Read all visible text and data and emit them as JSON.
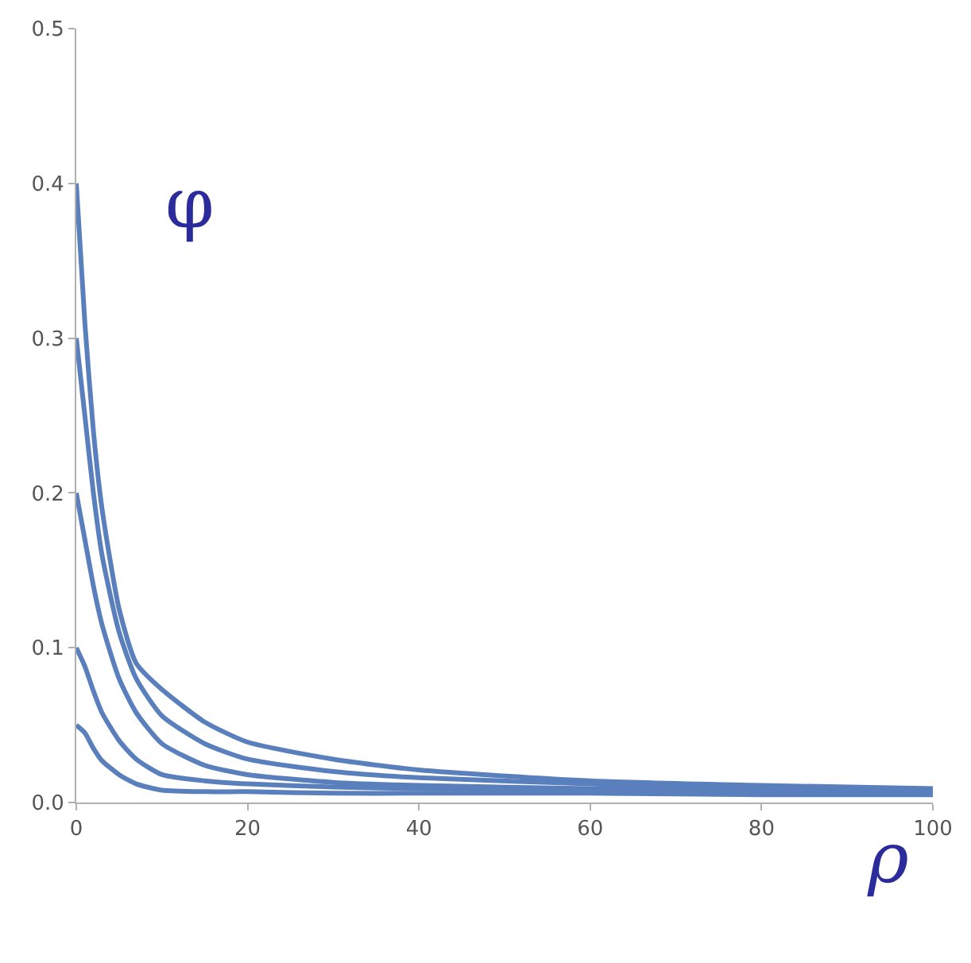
{
  "chart_data": {
    "type": "line",
    "xlabel": "ρ",
    "ylabel": "φ",
    "x": [
      0,
      1,
      2,
      3,
      5,
      7,
      10,
      15,
      20,
      30,
      40,
      60,
      80,
      100
    ],
    "series": [
      {
        "color": "#5a7fbd",
        "values": [
          0.4,
          0.31,
          0.24,
          0.19,
          0.125,
          0.09,
          0.073,
          0.052,
          0.039,
          0.028,
          0.021,
          0.014,
          0.011,
          0.009
        ]
      },
      {
        "color": "#5a7fbd",
        "values": [
          0.3,
          0.25,
          0.2,
          0.16,
          0.11,
          0.08,
          0.056,
          0.038,
          0.028,
          0.02,
          0.016,
          0.012,
          0.009,
          0.008
        ]
      },
      {
        "color": "#5a7fbd",
        "values": [
          0.2,
          0.17,
          0.14,
          0.115,
          0.08,
          0.058,
          0.038,
          0.024,
          0.018,
          0.013,
          0.011,
          0.009,
          0.008,
          0.007
        ]
      },
      {
        "color": "#5a7fbd",
        "values": [
          0.1,
          0.088,
          0.072,
          0.058,
          0.04,
          0.028,
          0.018,
          0.014,
          0.012,
          0.01,
          0.009,
          0.008,
          0.007,
          0.006
        ]
      },
      {
        "color": "#5a7fbd",
        "values": [
          0.05,
          0.045,
          0.035,
          0.027,
          0.018,
          0.012,
          0.008,
          0.007,
          0.007,
          0.006,
          0.006,
          0.006,
          0.005,
          0.005
        ]
      }
    ],
    "xlim": [
      0,
      100
    ],
    "xticks": [
      0,
      20,
      40,
      60,
      80,
      100
    ],
    "ylim": [
      0,
      0.5
    ],
    "yticks": [
      {
        "value": 0,
        "label": "0.0"
      },
      0.1,
      0.2,
      0.3,
      0.4,
      0.5
    ],
    "grid": false,
    "marker": "none",
    "line_style": "solid"
  }
}
